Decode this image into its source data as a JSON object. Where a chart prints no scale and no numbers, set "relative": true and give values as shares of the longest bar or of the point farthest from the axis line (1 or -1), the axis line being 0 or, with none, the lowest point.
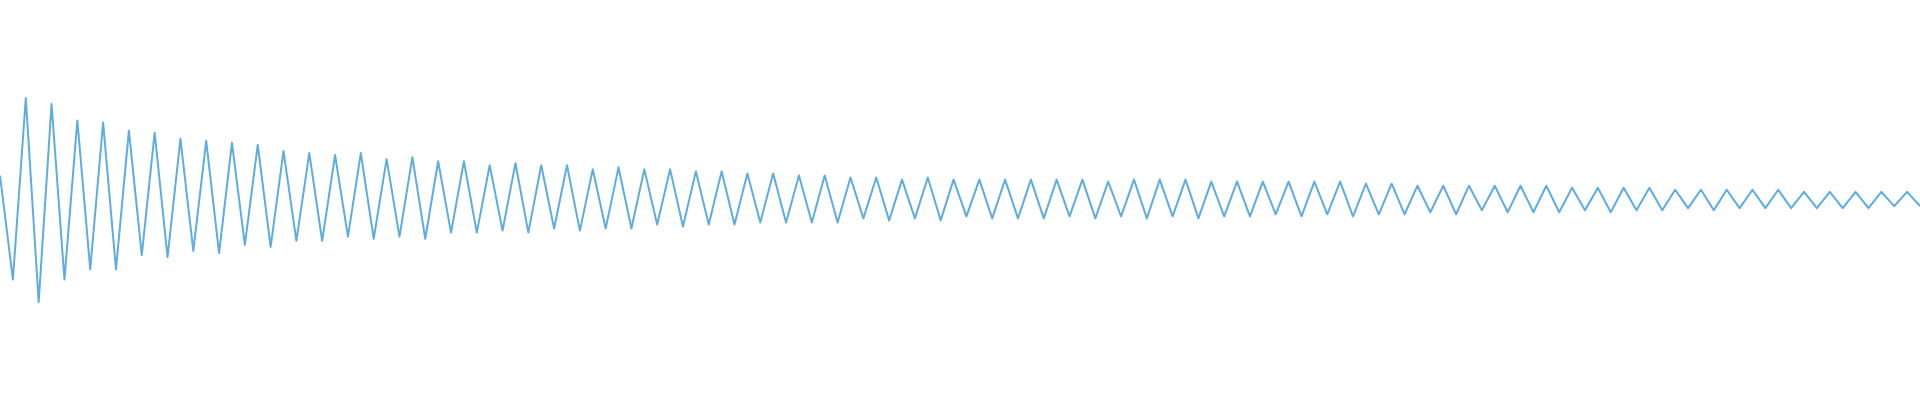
{
  "chart_data": {
    "type": "line",
    "relative": true,
    "color": "#5dade2",
    "categories": [
      null,
      null,
      null,
      null,
      null,
      null,
      null,
      null,
      null,
      null,
      null,
      null,
      null,
      null,
      null,
      null,
      null,
      null,
      null,
      null,
      null,
      null,
      null,
      null,
      null,
      null,
      null,
      null,
      null,
      null,
      null,
      null,
      null,
      null,
      null,
      null,
      null,
      null,
      null,
      null,
      null,
      null,
      null,
      null,
      null,
      null,
      null,
      null,
      null,
      null,
      null,
      null,
      null,
      null,
      null,
      null,
      null,
      null,
      null,
      null,
      null,
      null,
      null,
      null,
      null,
      null,
      null,
      null,
      null,
      null,
      null,
      null,
      null,
      null,
      null,
      null,
      null,
      null,
      null,
      null,
      null,
      null,
      null,
      null,
      null,
      null,
      null,
      null,
      null,
      null,
      null,
      null,
      null,
      null,
      null,
      null,
      null,
      null,
      null,
      null,
      null,
      null,
      null,
      null,
      null,
      null,
      null,
      null,
      null,
      null,
      null,
      null,
      null,
      null,
      null,
      null,
      null,
      null,
      null,
      null,
      null,
      null,
      null,
      null,
      null,
      null,
      null,
      null,
      null,
      null,
      null,
      null,
      null,
      null,
      null,
      null,
      null,
      null,
      null,
      null,
      null,
      null,
      null,
      null,
      null,
      null,
      null,
      null,
      null,
      null
    ],
    "values": [
      0.62,
      0.11,
      1.0,
      0.0,
      0.97,
      0.11,
      0.89,
      0.16,
      0.88,
      0.16,
      0.84,
      0.23,
      0.83,
      0.22,
      0.8,
      0.25,
      0.79,
      0.24,
      0.78,
      0.28,
      0.77,
      0.27,
      0.74,
      0.3,
      0.73,
      0.3,
      0.72,
      0.32,
      0.73,
      0.31,
      0.7,
      0.32,
      0.71,
      0.31,
      0.69,
      0.34,
      0.69,
      0.34,
      0.67,
      0.35,
      0.68,
      0.34,
      0.67,
      0.36,
      0.67,
      0.35,
      0.65,
      0.36,
      0.66,
      0.36,
      0.65,
      0.38,
      0.65,
      0.37,
      0.64,
      0.38,
      0.64,
      0.38,
      0.63,
      0.39,
      0.63,
      0.39,
      0.62,
      0.39,
      0.62,
      0.39,
      0.61,
      0.41,
      0.61,
      0.4,
      0.6,
      0.41,
      0.61,
      0.4,
      0.6,
      0.42,
      0.6,
      0.41,
      0.6,
      0.41,
      0.6,
      0.41,
      0.6,
      0.42,
      0.6,
      0.41,
      0.59,
      0.42,
      0.6,
      0.41,
      0.6,
      0.42,
      0.6,
      0.41,
      0.59,
      0.42,
      0.59,
      0.42,
      0.59,
      0.43,
      0.59,
      0.42,
      0.59,
      0.43,
      0.59,
      0.42,
      0.58,
      0.43,
      0.58,
      0.43,
      0.57,
      0.44,
      0.57,
      0.43,
      0.57,
      0.45,
      0.57,
      0.44,
      0.57,
      0.44,
      0.57,
      0.44,
      0.56,
      0.45,
      0.56,
      0.44,
      0.56,
      0.45,
      0.56,
      0.45,
      0.55,
      0.46,
      0.55,
      0.45,
      0.55,
      0.46,
      0.55,
      0.46,
      0.55,
      0.46,
      0.54,
      0.46,
      0.54,
      0.46,
      0.54,
      0.46,
      0.54,
      0.47,
      0.54,
      0.47
    ]
  }
}
